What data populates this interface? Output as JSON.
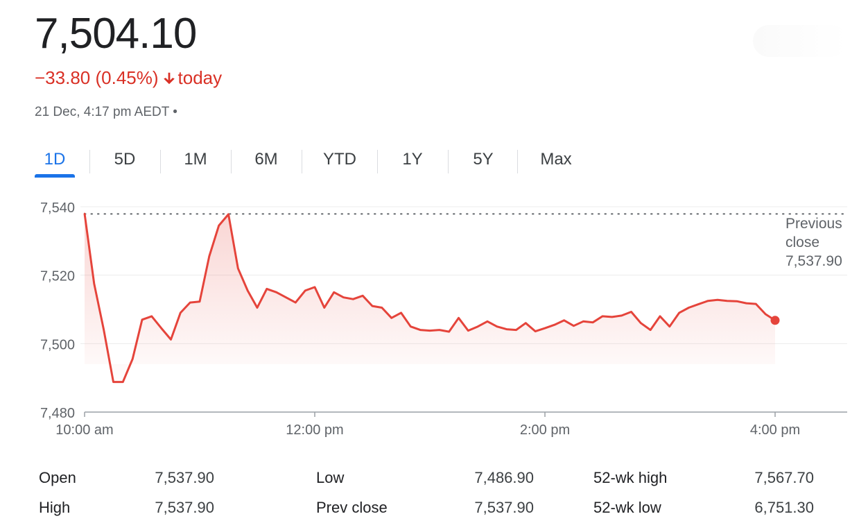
{
  "quote": {
    "price": "7,504.10",
    "change": "−33.80 (0.45%)",
    "change_suffix": "today",
    "timestamp": "21 Dec, 4:17 pm AEDT •"
  },
  "tabs": [
    "1D",
    "5D",
    "1M",
    "6M",
    "YTD",
    "1Y",
    "5Y",
    "Max"
  ],
  "active_tab": "1D",
  "colors": {
    "line": "#e5443b",
    "accent": "#1a73e8",
    "negative": "#d93025"
  },
  "stats": [
    {
      "label": "Open",
      "value": "7,537.90"
    },
    {
      "label": "High",
      "value": "7,537.90"
    },
    {
      "label": "Low",
      "value": "7,486.90"
    },
    {
      "label": "Prev close",
      "value": "7,537.90"
    },
    {
      "label": "52-wk high",
      "value": "7,567.70"
    },
    {
      "label": "52-wk low",
      "value": "6,751.30"
    }
  ],
  "chart_data": {
    "type": "area",
    "y_ticks": [
      "7,540",
      "7,520",
      "7,500",
      "7,480"
    ],
    "y_tick_values": [
      7540,
      7520,
      7500,
      7480
    ],
    "x_ticks": [
      "10:00 am",
      "12:00 pm",
      "2:00 pm",
      "4:00 pm"
    ],
    "x_tick_values": [
      600,
      720,
      840,
      960
    ],
    "ylim": [
      7480,
      7540
    ],
    "xlim": [
      600,
      998
    ],
    "previous_close": {
      "value": 7537.9,
      "label_lines": [
        "Previous",
        "close",
        "7,537.90"
      ]
    },
    "series": [
      {
        "x": [
          600,
          605,
          610,
          615,
          620,
          625,
          630,
          635,
          640,
          645,
          650,
          655,
          660,
          665,
          670,
          675,
          680,
          685,
          690,
          695,
          700,
          705,
          710,
          715,
          720,
          725,
          730,
          735,
          740,
          745,
          750,
          755,
          760,
          765,
          770,
          775,
          780,
          785,
          790,
          795,
          800,
          805,
          810,
          815,
          820,
          825,
          830,
          835,
          840,
          845,
          850,
          855,
          860,
          865,
          870,
          875,
          880,
          885,
          890,
          895,
          900,
          905,
          910,
          915,
          920,
          925,
          930,
          935,
          940,
          945,
          950,
          955,
          960
        ],
        "y": [
          7538.0,
          7517.5,
          7504.0,
          7488.8,
          7488.8,
          7495.5,
          7507.0,
          7508.0,
          7504.5,
          7501.2,
          7509.0,
          7512.0,
          7512.3,
          7525.5,
          7534.5,
          7537.8,
          7522.0,
          7515.5,
          7510.5,
          7516.0,
          7515.0,
          7513.5,
          7512.0,
          7515.5,
          7516.5,
          7510.5,
          7515.0,
          7513.5,
          7513.0,
          7514.0,
          7511.0,
          7510.5,
          7507.5,
          7509.0,
          7505.0,
          7504.0,
          7503.8,
          7504.0,
          7503.5,
          7507.5,
          7503.8,
          7505.0,
          7506.5,
          7505.0,
          7504.2,
          7504.0,
          7506.0,
          7503.6,
          7504.5,
          7505.5,
          7506.8,
          7505.2,
          7506.5,
          7506.2,
          7508.0,
          7507.8,
          7508.2,
          7509.3,
          7506.0,
          7504.0,
          7508.0,
          7505.0,
          7509.0,
          7510.5,
          7511.5,
          7512.5,
          7512.8,
          7512.5,
          7512.4,
          7511.8,
          7511.6,
          7508.6,
          7506.8
        ]
      }
    ]
  }
}
